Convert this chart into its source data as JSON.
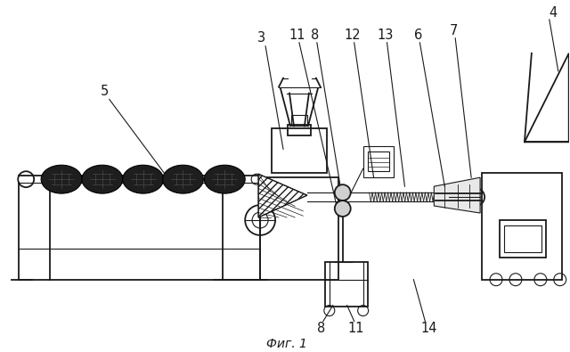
{
  "caption": "Фиг. 1",
  "bg_color": "#ffffff",
  "line_color": "#1a1a1a",
  "fig_width": 6.4,
  "fig_height": 3.95,
  "dpi": 100
}
